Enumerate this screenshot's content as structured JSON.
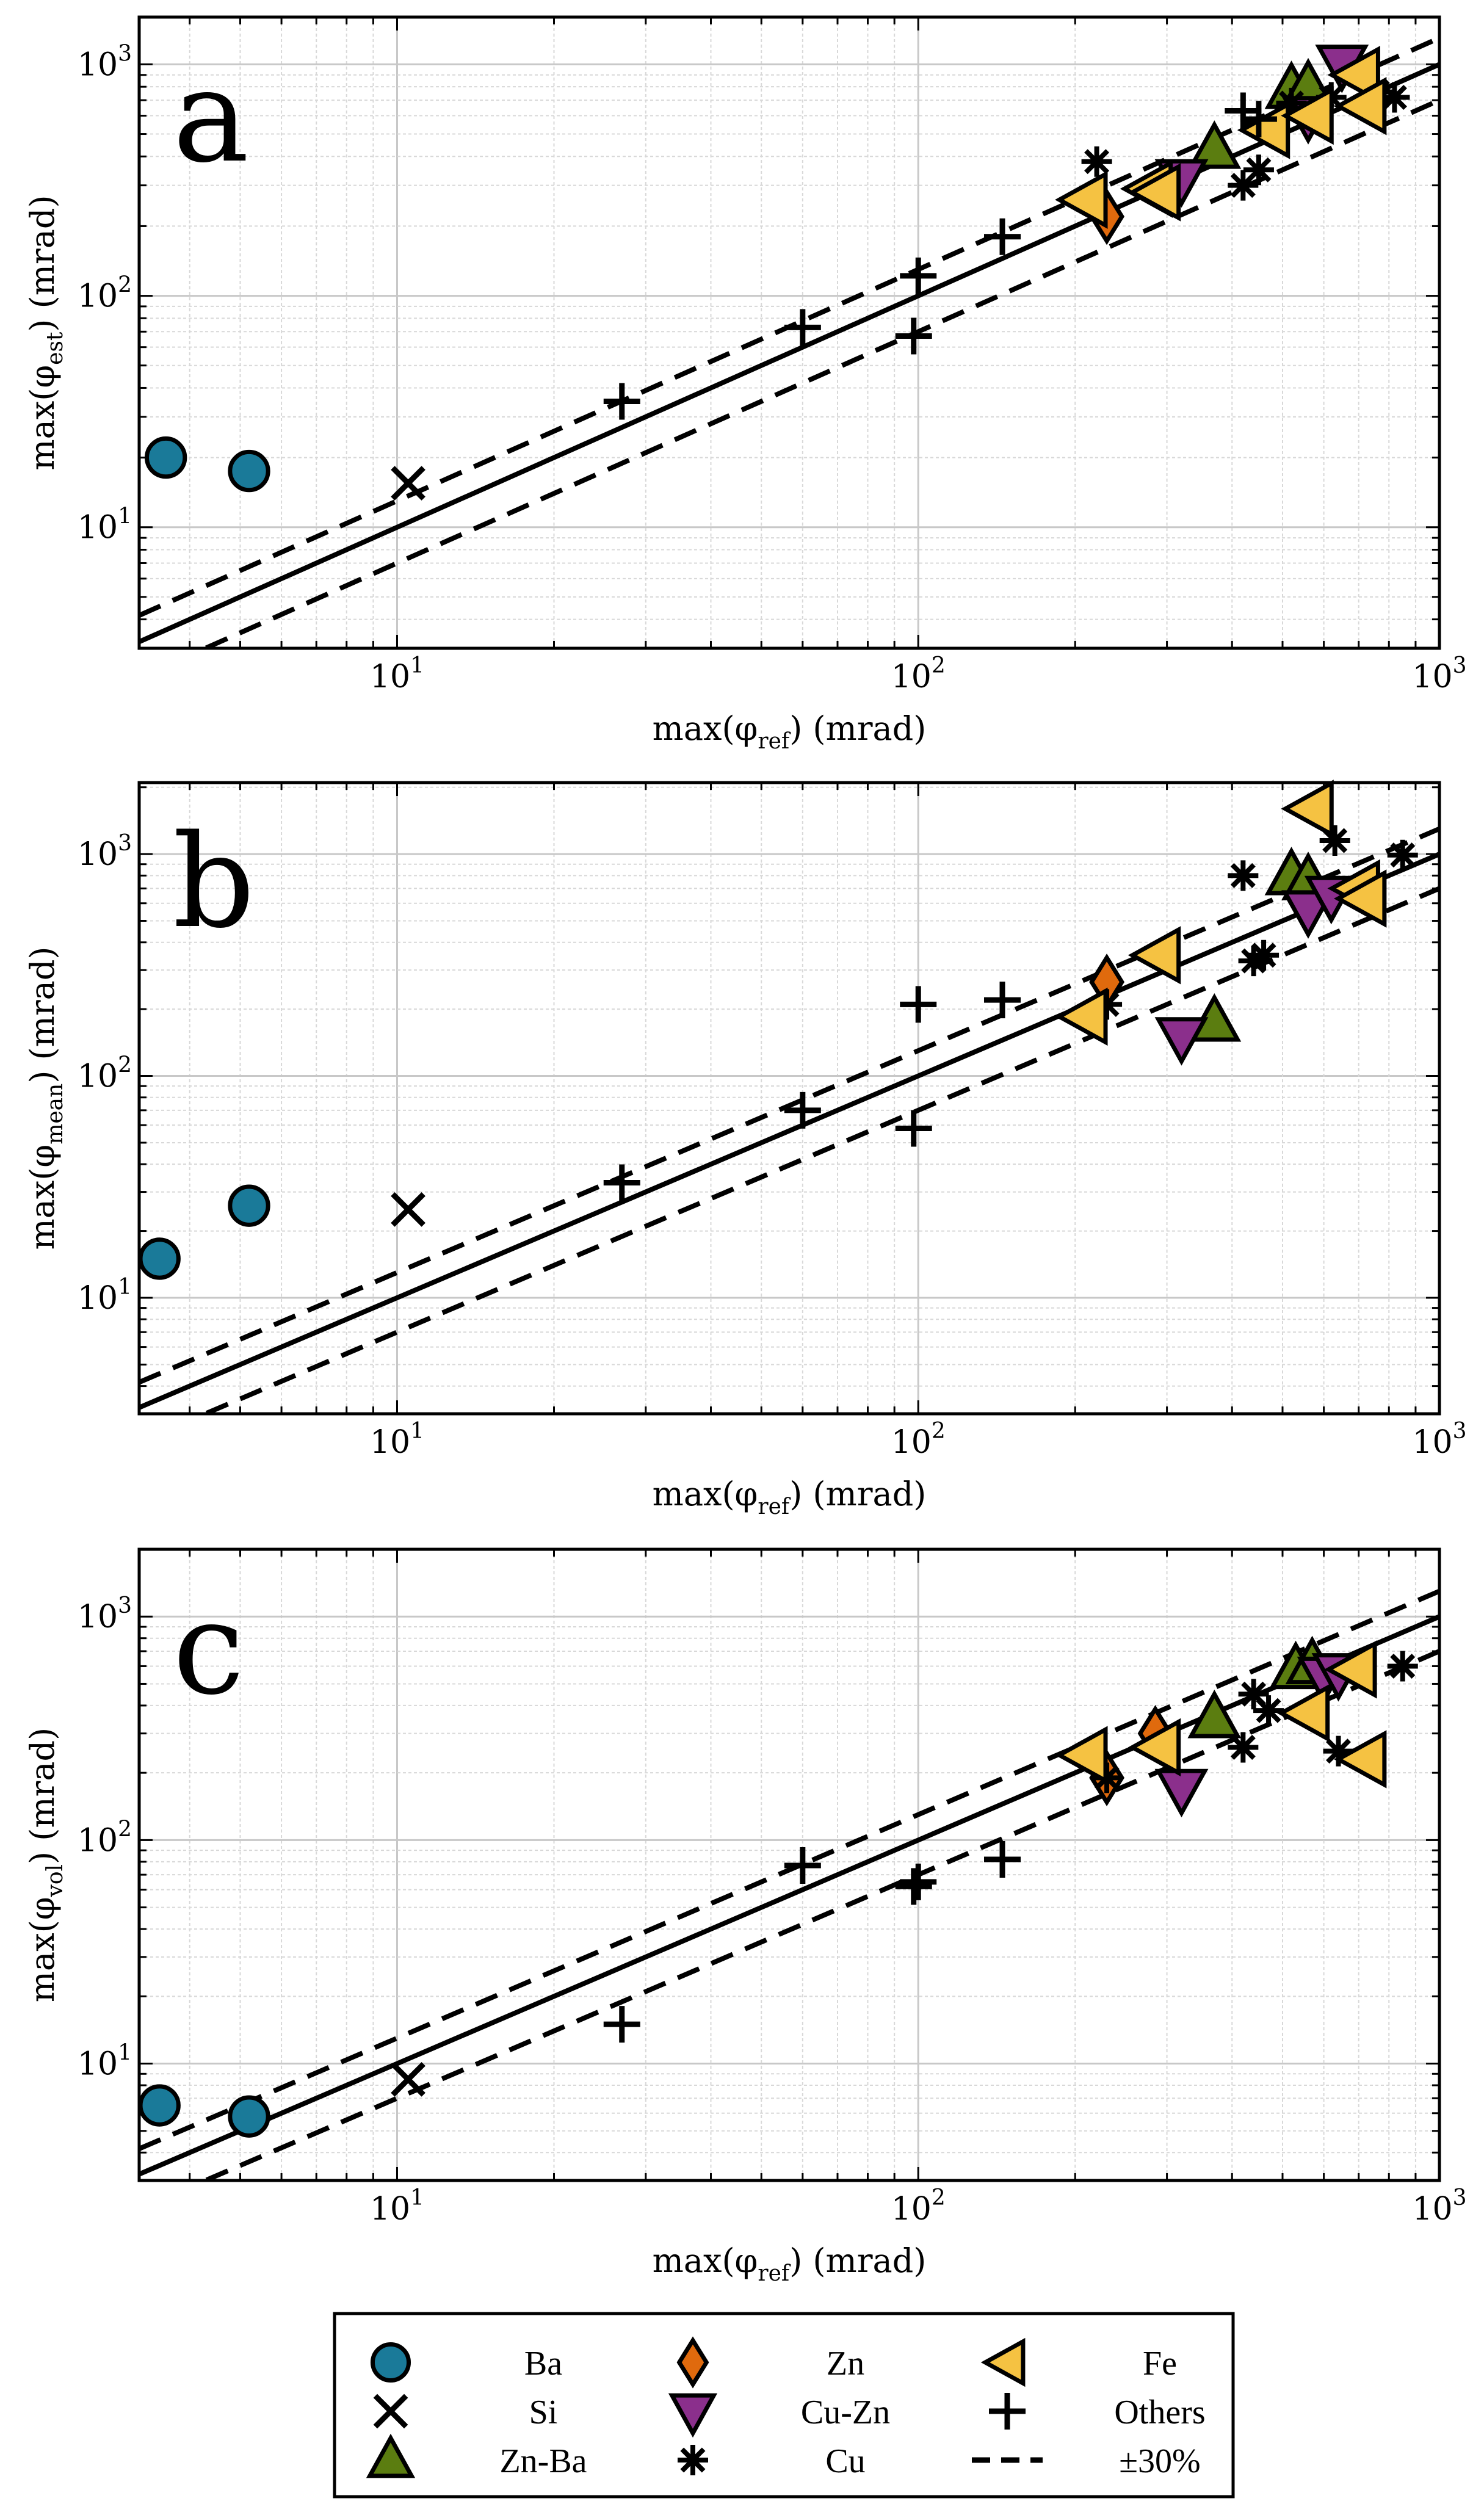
{
  "chart_data": [
    {
      "type": "scatter",
      "panel_label": "a",
      "xlabel": "max(φref) (mrad)",
      "ylabel": "max(φest) (mrad)",
      "xscale": "log",
      "yscale": "log",
      "xlim": [
        3.2,
        1000
      ],
      "ylim": [
        3,
        1600
      ],
      "grid": true,
      "reference_lines": [
        {
          "name": "1:1",
          "factor": 1.0,
          "style": "solid"
        },
        {
          "name": "+30%",
          "factor": 1.3,
          "style": "dashed"
        },
        {
          "name": "-30%",
          "factor": 0.7,
          "style": "dashed"
        }
      ],
      "series": [
        {
          "name": "Ba",
          "points": [
            [
              3.6,
              20
            ],
            [
              5.2,
              17.5
            ]
          ]
        },
        {
          "name": "Si",
          "points": [
            [
              10.5,
              15.5
            ]
          ]
        },
        {
          "name": "Zn-Ba",
          "points": [
            [
              370,
              430
            ],
            [
              520,
              780
            ],
            [
              560,
              800
            ]
          ]
        },
        {
          "name": "Zn",
          "points": [
            [
              230,
              220
            ]
          ]
        },
        {
          "name": "Cu-Zn",
          "points": [
            [
              320,
              320
            ],
            [
              560,
              600
            ],
            [
              650,
              1000
            ]
          ]
        },
        {
          "name": "Cu",
          "points": [
            [
              220,
              380
            ],
            [
              420,
              300
            ],
            [
              450,
              350
            ],
            [
              520,
              680
            ],
            [
              620,
              720
            ],
            [
              760,
              760
            ],
            [
              820,
              720
            ]
          ]
        },
        {
          "name": "Fe",
          "points": [
            [
              210,
              260
            ],
            [
              280,
              290
            ],
            [
              290,
              280
            ],
            [
              470,
              520
            ],
            [
              570,
              600
            ],
            [
              700,
              900
            ],
            [
              720,
              660
            ]
          ]
        },
        {
          "name": "Others",
          "points": [
            [
              27,
              35
            ],
            [
              60,
              73
            ],
            [
              98,
              67
            ],
            [
              100,
              122
            ],
            [
              145,
              180
            ],
            [
              420,
              630
            ],
            [
              450,
              580
            ]
          ]
        }
      ]
    },
    {
      "type": "scatter",
      "panel_label": "b",
      "xlabel": "max(φref) (mrad)",
      "ylabel": "max(φmean) (mrad)",
      "xscale": "log",
      "yscale": "log",
      "xlim": [
        3.2,
        1000
      ],
      "ylim": [
        3,
        2100
      ],
      "grid": true,
      "reference_lines": [
        {
          "name": "1:1",
          "factor": 1.0,
          "style": "solid"
        },
        {
          "name": "+30%",
          "factor": 1.3,
          "style": "dashed"
        },
        {
          "name": "-30%",
          "factor": 0.7,
          "style": "dashed"
        }
      ],
      "series": [
        {
          "name": "Ba",
          "points": [
            [
              3.5,
              15
            ],
            [
              5.2,
              26
            ]
          ]
        },
        {
          "name": "Si",
          "points": [
            [
              10.5,
              25
            ]
          ]
        },
        {
          "name": "Zn-Ba",
          "points": [
            [
              370,
              175
            ],
            [
              520,
              800
            ],
            [
              560,
              760
            ]
          ]
        },
        {
          "name": "Zn",
          "points": [
            [
              230,
              265
            ]
          ]
        },
        {
          "name": "Cu-Zn",
          "points": [
            [
              320,
              150
            ],
            [
              560,
              560
            ],
            [
              620,
              650
            ]
          ]
        },
        {
          "name": "Cu",
          "points": [
            [
              230,
              210
            ],
            [
              420,
              800
            ],
            [
              440,
              330
            ],
            [
              460,
              350
            ],
            [
              630,
              1150
            ],
            [
              850,
              990
            ]
          ]
        },
        {
          "name": "Fe",
          "points": [
            [
              210,
              185
            ],
            [
              290,
              350
            ],
            [
              570,
              1600
            ],
            [
              700,
              700
            ],
            [
              720,
              630
            ]
          ]
        },
        {
          "name": "Others",
          "points": [
            [
              27,
              33
            ],
            [
              60,
              70
            ],
            [
              98,
              58
            ],
            [
              100,
              210
            ],
            [
              145,
              220
            ]
          ]
        }
      ]
    },
    {
      "type": "scatter",
      "panel_label": "c",
      "xlabel": "max(φref) (mrad)",
      "ylabel": "max(φvol) (mrad)",
      "xscale": "log",
      "yscale": "log",
      "xlim": [
        3.2,
        1000
      ],
      "ylim": [
        3,
        2000
      ],
      "grid": true,
      "reference_lines": [
        {
          "name": "1:1",
          "factor": 1.0,
          "style": "solid"
        },
        {
          "name": "+30%",
          "factor": 1.3,
          "style": "dashed"
        },
        {
          "name": "-30%",
          "factor": 0.7,
          "style": "dashed"
        }
      ],
      "series": [
        {
          "name": "Ba",
          "points": [
            [
              3.5,
              6.5
            ],
            [
              5.2,
              5.8
            ]
          ]
        },
        {
          "name": "Si",
          "points": [
            [
              10.5,
              8.5
            ]
          ]
        },
        {
          "name": "Zn-Ba",
          "points": [
            [
              370,
              350
            ],
            [
              530,
              580
            ],
            [
              570,
              610
            ]
          ]
        },
        {
          "name": "Zn",
          "points": [
            [
              230,
              190
            ],
            [
              285,
              300
            ]
          ]
        },
        {
          "name": "Cu-Zn",
          "points": [
            [
              320,
              170
            ],
            [
              600,
              540
            ],
            [
              640,
              560
            ]
          ]
        },
        {
          "name": "Cu",
          "points": [
            [
              230,
              190
            ],
            [
              420,
              260
            ],
            [
              440,
              450
            ],
            [
              470,
              380
            ],
            [
              640,
              250
            ],
            [
              850,
              600
            ]
          ]
        },
        {
          "name": "Fe",
          "points": [
            [
              210,
              240
            ],
            [
              290,
              260
            ],
            [
              560,
              370
            ],
            [
              690,
              580
            ],
            [
              720,
              230
            ]
          ]
        },
        {
          "name": "Others",
          "points": [
            [
              27,
              15
            ],
            [
              60,
              77
            ],
            [
              98,
              62
            ],
            [
              100,
              65
            ],
            [
              145,
              82
            ]
          ]
        }
      ]
    }
  ],
  "axis_tick_labels": {
    "x": [
      "10^1",
      "10^2",
      "10^3"
    ],
    "y": [
      "10^1",
      "10^2",
      "10^3"
    ]
  },
  "legend": {
    "position": "bottom-center",
    "entries": [
      {
        "label": "Ba",
        "marker": "circle",
        "color": "#1a7a99"
      },
      {
        "label": "Si",
        "marker": "x-cross",
        "color": "#000000"
      },
      {
        "label": "Zn-Ba",
        "marker": "triangle-up",
        "color": "#5b7d10"
      },
      {
        "label": "Zn",
        "marker": "diamond",
        "color": "#e06a0d"
      },
      {
        "label": "Cu-Zn",
        "marker": "triangle-down",
        "color": "#8b2f8c"
      },
      {
        "label": "Cu",
        "marker": "asterisk",
        "color": "#000000"
      },
      {
        "label": "Fe",
        "marker": "triangle-left",
        "color": "#f5c242"
      },
      {
        "label": "Others",
        "marker": "plus",
        "color": "#000000"
      },
      {
        "label": "±30%",
        "marker": "dashed-line",
        "color": "#000000"
      }
    ]
  }
}
